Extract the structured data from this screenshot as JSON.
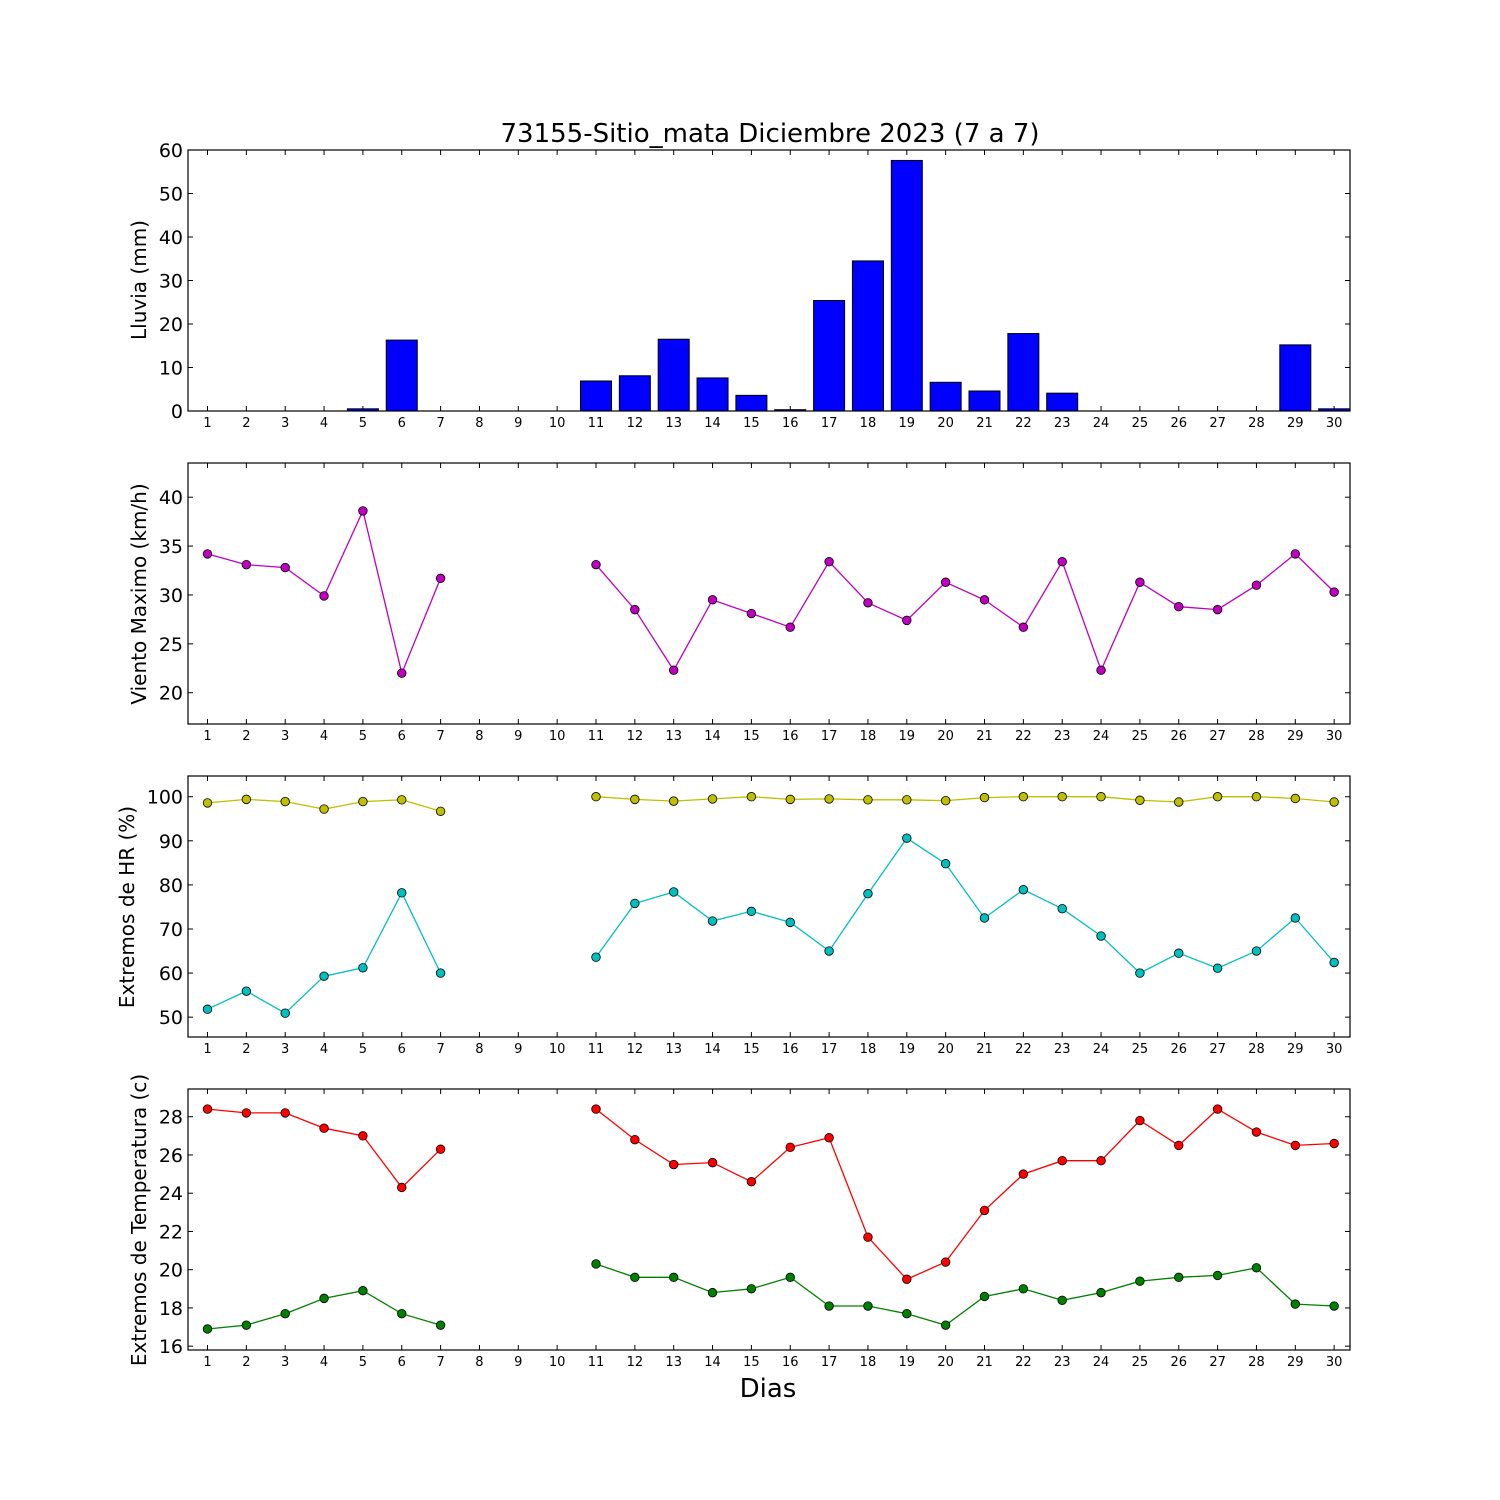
{
  "figure": {
    "title": "73155-Sitio_mata Diciembre 2023  (7 a 7)",
    "xlabel": "Dias"
  },
  "chart_data": [
    {
      "type": "bar",
      "id": "lluvia",
      "ylabel": "Lluvia (mm)",
      "categories": [
        1,
        2,
        3,
        4,
        5,
        6,
        7,
        8,
        9,
        10,
        11,
        12,
        13,
        14,
        15,
        16,
        17,
        18,
        19,
        20,
        21,
        22,
        23,
        24,
        25,
        26,
        27,
        28,
        29,
        30
      ],
      "ylim": [
        0,
        60
      ],
      "yticks": [
        0,
        10,
        20,
        30,
        40,
        50,
        60
      ],
      "color": "#0000ff",
      "values": [
        0,
        0,
        0,
        0,
        0.5,
        16.3,
        0,
        0,
        0,
        0,
        6.9,
        8.1,
        16.5,
        7.6,
        3.6,
        0.3,
        25.4,
        34.5,
        57.6,
        6.6,
        4.6,
        17.8,
        4.1,
        0,
        0,
        0,
        0,
        0,
        15.2,
        0.5
      ]
    },
    {
      "type": "line",
      "id": "viento",
      "ylabel": "Viento Maximo (km/h)",
      "x": [
        1,
        2,
        3,
        4,
        5,
        6,
        7,
        8,
        9,
        10,
        11,
        12,
        13,
        14,
        15,
        16,
        17,
        18,
        19,
        20,
        21,
        22,
        23,
        24,
        25,
        26,
        27,
        28,
        29,
        30
      ],
      "ylim": [
        16.8,
        43.5
      ],
      "yticks": [
        20,
        25,
        30,
        35,
        40
      ],
      "series": [
        {
          "color": "#bf00bf",
          "values": [
            34.2,
            33.1,
            32.8,
            29.9,
            38.6,
            22.0,
            31.7,
            null,
            null,
            null,
            33.1,
            28.5,
            22.3,
            29.5,
            28.1,
            26.7,
            33.4,
            29.2,
            27.4,
            31.3,
            29.5,
            26.7,
            33.4,
            22.3,
            31.3,
            28.8,
            28.5,
            31.0,
            34.2,
            30.3
          ]
        }
      ]
    },
    {
      "type": "line",
      "id": "humedad",
      "ylabel": "Extremos de HR (%)",
      "x": [
        1,
        2,
        3,
        4,
        5,
        6,
        7,
        8,
        9,
        10,
        11,
        12,
        13,
        14,
        15,
        16,
        17,
        18,
        19,
        20,
        21,
        22,
        23,
        24,
        25,
        26,
        27,
        28,
        29,
        30
      ],
      "ylim": [
        45.5,
        104.7
      ],
      "yticks": [
        50,
        60,
        70,
        80,
        90,
        100
      ],
      "series": [
        {
          "color": "#bfbf00",
          "values": [
            98.6,
            99.4,
            98.9,
            97.2,
            98.9,
            99.3,
            96.7,
            null,
            null,
            null,
            100,
            99.4,
            99.0,
            99.5,
            100,
            99.4,
            99.5,
            99.3,
            99.3,
            99.1,
            99.8,
            100,
            100,
            100,
            99.2,
            98.8,
            100,
            100,
            99.6,
            98.8
          ]
        },
        {
          "color": "#00bfbf",
          "values": [
            51.8,
            55.9,
            50.9,
            59.3,
            61.2,
            78.2,
            60.0,
            null,
            null,
            null,
            63.6,
            75.8,
            78.4,
            71.8,
            74.0,
            71.5,
            65.0,
            78.0,
            90.6,
            84.8,
            72.5,
            78.9,
            74.6,
            68.4,
            60.0,
            64.5,
            61.1,
            65.0,
            72.5,
            62.4
          ]
        }
      ]
    },
    {
      "type": "line",
      "id": "temperatura",
      "ylabel": "Extremos de Temperatura (c)",
      "x": [
        1,
        2,
        3,
        4,
        5,
        6,
        7,
        8,
        9,
        10,
        11,
        12,
        13,
        14,
        15,
        16,
        17,
        18,
        19,
        20,
        21,
        22,
        23,
        24,
        25,
        26,
        27,
        28,
        29,
        30
      ],
      "ylim": [
        15.8,
        29.45
      ],
      "yticks": [
        16,
        18,
        20,
        22,
        24,
        26,
        28
      ],
      "series": [
        {
          "color": "#ff0000",
          "values": [
            28.4,
            28.2,
            28.2,
            27.4,
            27.0,
            24.3,
            26.3,
            null,
            null,
            null,
            28.4,
            26.8,
            25.5,
            25.6,
            24.6,
            26.4,
            26.9,
            21.7,
            19.5,
            20.4,
            23.1,
            25.0,
            25.7,
            25.7,
            27.8,
            26.5,
            28.4,
            27.2,
            26.5,
            26.6
          ]
        },
        {
          "color": "#008000",
          "values": [
            16.9,
            17.1,
            17.7,
            18.5,
            18.9,
            17.7,
            17.1,
            null,
            null,
            null,
            20.3,
            19.6,
            19.6,
            18.8,
            19.0,
            19.6,
            18.1,
            18.1,
            17.7,
            17.1,
            18.6,
            19.0,
            18.4,
            18.8,
            19.4,
            19.6,
            19.7,
            20.1,
            18.2,
            18.1
          ]
        }
      ]
    }
  ]
}
